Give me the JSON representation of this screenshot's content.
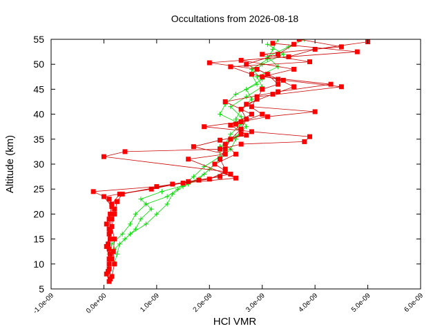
{
  "chart_data": {
    "type": "scatter",
    "title": "Occultations from 2026-08-18",
    "xlabel": "HCl VMR",
    "ylabel": "Altitude (km)",
    "xlim": [
      -1e-09,
      6e-09
    ],
    "ylim": [
      5,
      55
    ],
    "grid": false,
    "x_ticks": [
      "-1.0e-09",
      "0.0e+00",
      "1.0e-09",
      "2.0e-09",
      "3.0e-09",
      "4.0e-09",
      "5.0e-09",
      "6.0e-09"
    ],
    "y_ticks": [
      "5",
      "10",
      "15",
      "20",
      "25",
      "30",
      "35",
      "40",
      "45",
      "50",
      "55"
    ],
    "colors": {
      "red_series": "#ff0000",
      "red_line": "#cc0000",
      "green_series": "#00dd00"
    },
    "series": [
      {
        "marker": "square",
        "color": "#ff0000",
        "profiles": [
          [
            [
              1e-10,
              6.5
            ],
            [
              5e-11,
              8
            ],
            [
              1e-10,
              10
            ],
            [
              1.2e-10,
              12
            ],
            [
              8e-11,
              14
            ],
            [
              1e-10,
              16
            ],
            [
              5e-11,
              18
            ],
            [
              1.2e-10,
              20
            ],
            [
              1.5e-10,
              22
            ],
            [
              3e-10,
              24
            ],
            [
              9e-10,
              25
            ],
            [
              1.6e-09,
              26.5
            ],
            [
              2.2e-09,
              27.5
            ],
            [
              2.3e-09,
              29
            ],
            [
              2.2e-09,
              31
            ],
            [
              2.3e-09,
              33
            ],
            [
              2.4e-09,
              35
            ],
            [
              2.6e-09,
              37
            ],
            [
              2.7e-09,
              39
            ],
            [
              2.6e-09,
              41
            ],
            [
              2.9e-09,
              43
            ],
            [
              3e-09,
              45
            ],
            [
              3.3e-09,
              46
            ],
            [
              3.1e-09,
              48
            ],
            [
              2.7e-09,
              50
            ],
            [
              3.3e-09,
              52
            ],
            [
              3.6e-09,
              54
            ]
          ],
          [
            [
              1.2e-10,
              7
            ],
            [
              1e-10,
              9
            ],
            [
              1.5e-10,
              11
            ],
            [
              1e-10,
              13
            ],
            [
              1.2e-10,
              15
            ],
            [
              1e-10,
              17
            ],
            [
              1.5e-10,
              19
            ],
            [
              2e-10,
              21
            ],
            [
              1e-10,
              23
            ],
            [
              -2e-10,
              24.5
            ],
            [
              1e-09,
              25.5
            ],
            [
              1.8e-09,
              26.8
            ],
            [
              2.4e-09,
              28
            ],
            [
              2.1e-09,
              30
            ],
            [
              2.5e-09,
              32
            ],
            [
              2.3e-09,
              34
            ],
            [
              2.6e-09,
              36
            ],
            [
              2.5e-09,
              38
            ],
            [
              3e-09,
              40
            ],
            [
              2.7e-09,
              42
            ],
            [
              3.2e-09,
              44
            ],
            [
              3.6e-09,
              45.5
            ],
            [
              3.3e-09,
              47
            ],
            [
              2.9e-09,
              49
            ],
            [
              2e-09,
              50.3
            ],
            [
              3.5e-09,
              51.5
            ],
            [
              4e-09,
              53
            ],
            [
              5e-09,
              54.5
            ]
          ],
          [
            [
              1.5e-10,
              7.5
            ],
            [
              2e-10,
              10
            ],
            [
              1.8e-10,
              12.5
            ],
            [
              2e-10,
              15
            ],
            [
              1.5e-10,
              17.5
            ],
            [
              2e-10,
              20
            ],
            [
              2.5e-10,
              22.5
            ],
            [
              3.5e-10,
              24
            ],
            [
              1.3e-09,
              26
            ],
            [
              2e-09,
              27
            ],
            [
              2.3e-09,
              28.5
            ],
            [
              0.0,
              31.5
            ],
            [
              4e-10,
              32.5
            ],
            [
              2.2e-09,
              33
            ],
            [
              2.6e-09,
              34
            ],
            [
              3.8e-09,
              34.5
            ],
            [
              3.9e-09,
              35.5
            ],
            [
              2.8e-09,
              36.5
            ],
            [
              1.9e-09,
              37.5
            ],
            [
              2.6e-09,
              38.5
            ],
            [
              3.1e-09,
              39.5
            ],
            [
              4e-09,
              40.5
            ],
            [
              2.8e-09,
              41.5
            ],
            [
              2.9e-09,
              43.5
            ],
            [
              4.5e-09,
              45.5
            ],
            [
              3.4e-09,
              46.8
            ],
            [
              2.8e-09,
              48
            ],
            [
              2.4e-09,
              49.5
            ],
            [
              3.9e-09,
              50.5
            ],
            [
              3e-09,
              52
            ],
            [
              4.5e-09,
              53.5
            ],
            [
              3.7e-09,
              55
            ]
          ],
          [
            [
              8e-11,
              8.5
            ],
            [
              1e-10,
              11
            ],
            [
              5e-11,
              13.5
            ],
            [
              1.2e-10,
              16.5
            ],
            [
              1e-10,
              19
            ],
            [
              1.5e-10,
              21.5
            ],
            [
              0.0,
              23.5
            ],
            [
              1.5e-09,
              26.2
            ],
            [
              2.5e-09,
              27.2
            ],
            [
              1.6e-09,
              31
            ],
            [
              2.3e-09,
              32
            ],
            [
              1.7e-09,
              33.5
            ],
            [
              2.2e-09,
              34.8
            ],
            [
              2.7e-09,
              35.8
            ],
            [
              2.4e-09,
              37.8
            ],
            [
              2.8e-09,
              40
            ],
            [
              2.3e-09,
              42.5
            ],
            [
              3.3e-09,
              44.5
            ],
            [
              4.3e-09,
              46
            ],
            [
              3e-09,
              47.5
            ],
            [
              3.6e-09,
              49
            ],
            [
              2.6e-09,
              50.8
            ],
            [
              4.8e-09,
              52.5
            ],
            [
              3.2e-09,
              54.2
            ]
          ]
        ]
      },
      {
        "marker": "plus",
        "color": "#00dd00",
        "profiles": [
          [
            [
              2e-10,
              10
            ],
            [
              2.5e-10,
              12
            ],
            [
              3e-10,
              14
            ],
            [
              5e-10,
              16
            ],
            [
              8e-10,
              18
            ],
            [
              1e-09,
              20
            ],
            [
              1.2e-09,
              22
            ],
            [
              1.3e-09,
              24
            ],
            [
              1.5e-09,
              25.5
            ],
            [
              1.8e-09,
              27
            ],
            [
              2e-09,
              29
            ],
            [
              2.2e-09,
              31
            ],
            [
              2.4e-09,
              33
            ],
            [
              2.5e-09,
              35
            ],
            [
              2.6e-09,
              37
            ],
            [
              2.5e-09,
              39
            ],
            [
              2.6e-09,
              41
            ],
            [
              2.8e-09,
              43
            ],
            [
              2.7e-09,
              45
            ],
            [
              3e-09,
              47
            ],
            [
              2.8e-09,
              49
            ],
            [
              3.1e-09,
              51
            ],
            [
              3.2e-09,
              53
            ],
            [
              3.3e-09,
              55
            ]
          ],
          [
            [
              1.5e-10,
              11
            ],
            [
              2e-10,
              13
            ],
            [
              4e-10,
              15
            ],
            [
              6e-10,
              17
            ],
            [
              7e-10,
              19
            ],
            [
              9e-10,
              21
            ],
            [
              7e-10,
              23
            ],
            [
              1.1e-09,
              24.5
            ],
            [
              1.6e-09,
              26
            ],
            [
              1.9e-09,
              28
            ],
            [
              2.1e-09,
              30
            ],
            [
              2.3e-09,
              32
            ],
            [
              2.3e-09,
              34
            ],
            [
              2.4e-09,
              36
            ],
            [
              2.6e-09,
              38
            ],
            [
              2.2e-09,
              40
            ],
            [
              2.3e-09,
              42
            ],
            [
              2.5e-09,
              44
            ],
            [
              2.9e-09,
              46
            ],
            [
              2.8e-09,
              48
            ],
            [
              3e-09,
              50
            ],
            [
              3.4e-09,
              52
            ],
            [
              3.1e-09,
              54
            ]
          ],
          [
            [
              1e-10,
              12
            ],
            [
              1.5e-10,
              14
            ],
            [
              3.5e-10,
              16
            ],
            [
              5e-10,
              18
            ],
            [
              6e-10,
              20
            ],
            [
              8e-10,
              22
            ],
            [
              1.2e-09,
              23.5
            ],
            [
              1.4e-09,
              25
            ],
            [
              1.7e-09,
              27.5
            ],
            [
              1.9e-09,
              29.5
            ],
            [
              2.2e-09,
              31.5
            ],
            [
              2.2e-09,
              33.5
            ],
            [
              2.5e-09,
              35.5
            ],
            [
              2.7e-09,
              37.5
            ],
            [
              2.6e-09,
              39.5
            ],
            [
              2.4e-09,
              41.5
            ],
            [
              2.7e-09,
              43.5
            ],
            [
              3e-09,
              45.5
            ],
            [
              2.9e-09,
              47.5
            ],
            [
              3.3e-09,
              49.5
            ],
            [
              3.1e-09,
              51.5
            ],
            [
              3.5e-09,
              53.5
            ],
            [
              3.8e-09,
              55
            ]
          ]
        ]
      }
    ]
  }
}
